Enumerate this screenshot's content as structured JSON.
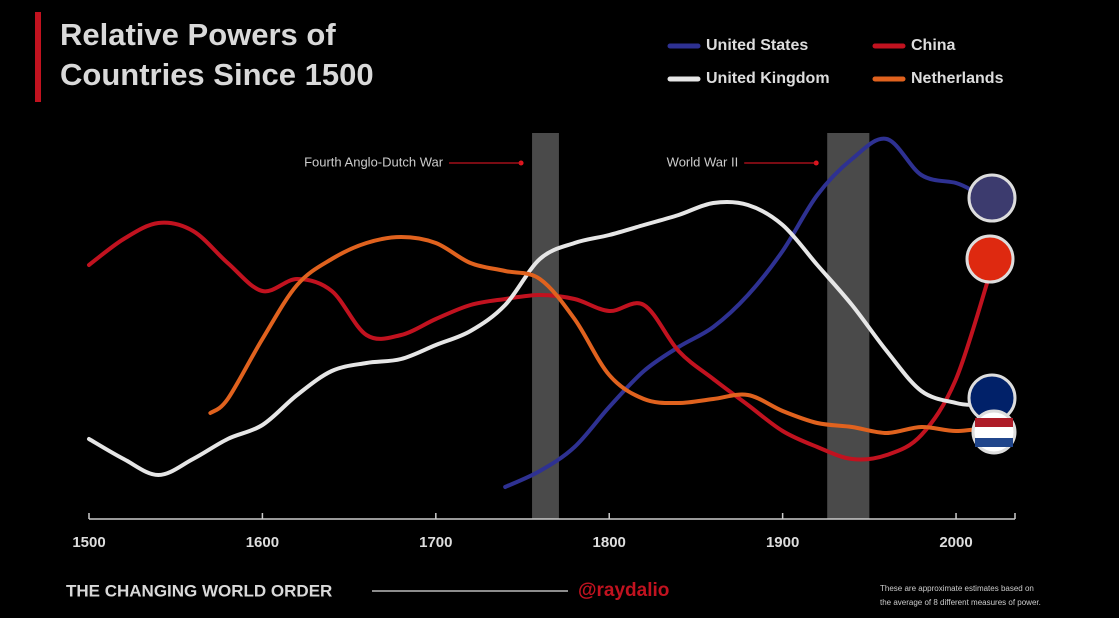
{
  "chart_data": {
    "type": "line",
    "title": [
      "Relative Powers of",
      "Countries Since 1500"
    ],
    "xlim": [
      1500,
      2034
    ],
    "xticks": [
      1500,
      1600,
      1700,
      1800,
      1900,
      2000
    ],
    "ylim": [
      0,
      100
    ],
    "series": [
      {
        "name": "United States",
        "color": "#2e3192",
        "x": [
          1740,
          1760,
          1780,
          1800,
          1820,
          1840,
          1860,
          1880,
          1900,
          1920,
          1940,
          1960,
          1980,
          2000,
          2010
        ],
        "values": [
          8,
          12,
          18,
          28,
          37,
          43,
          48,
          56,
          67,
          81,
          90,
          95,
          86,
          84,
          82
        ]
      },
      {
        "name": "China",
        "color": "#c1121f",
        "x": [
          1500,
          1520,
          1540,
          1560,
          1580,
          1600,
          1620,
          1640,
          1660,
          1680,
          1700,
          1720,
          1740,
          1760,
          1780,
          1800,
          1820,
          1840,
          1860,
          1880,
          1900,
          1920,
          1940,
          1960,
          1980,
          2000,
          2020
        ],
        "values": [
          63.5,
          70,
          74,
          72,
          64,
          57,
          60,
          57,
          46,
          46,
          50,
          53.5,
          55,
          56,
          55,
          52,
          53.5,
          42,
          35,
          28.5,
          22,
          18,
          15,
          16,
          21,
          35,
          62
        ]
      },
      {
        "name": "United Kingdom",
        "color": "#e6e6e6",
        "x": [
          1500,
          1520,
          1540,
          1560,
          1580,
          1600,
          1620,
          1640,
          1660,
          1680,
          1700,
          1720,
          1740,
          1760,
          1780,
          1800,
          1820,
          1840,
          1860,
          1880,
          1900,
          1920,
          1940,
          1960,
          1980,
          2000,
          2010
        ],
        "values": [
          20,
          15,
          11,
          15,
          20,
          23.5,
          31,
          37,
          39,
          40,
          43.5,
          47,
          53.5,
          65,
          69,
          71,
          73.5,
          76,
          79,
          78.5,
          73.5,
          63.5,
          53.5,
          42,
          32,
          29,
          28.5
        ]
      },
      {
        "name": "Netherlands",
        "color": "#e0621e",
        "x": [
          1570,
          1580,
          1600,
          1620,
          1640,
          1660,
          1680,
          1700,
          1720,
          1740,
          1760,
          1780,
          1800,
          1820,
          1840,
          1860,
          1880,
          1900,
          1920,
          1940,
          1960,
          1980,
          2000,
          2020
        ],
        "values": [
          26.5,
          30,
          45,
          58.5,
          65,
          69,
          70.5,
          69,
          64,
          62,
          60,
          50,
          36,
          30,
          29,
          30,
          31,
          27,
          24,
          23,
          21.5,
          23,
          22,
          23
        ]
      }
    ],
    "bands": [
      {
        "label": "Fourth Anglo-Dutch War",
        "start": 1755.5,
        "end": 1771
      },
      {
        "label": "World War II",
        "start": 1925.7,
        "end": 1950
      }
    ],
    "footer": "THE CHANGING WORLD ORDER",
    "handle": "@raydalio",
    "note": [
      "These are approximate estimates based on",
      "the average of 8 different measures of power."
    ]
  }
}
